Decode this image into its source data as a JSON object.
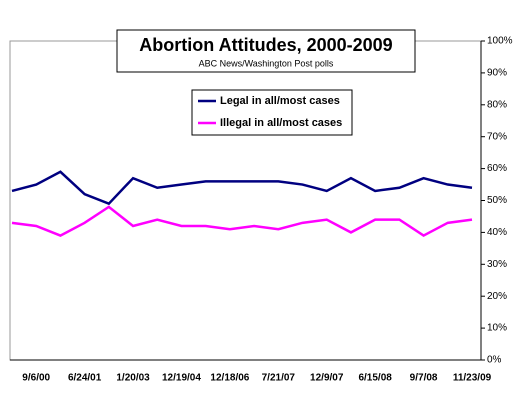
{
  "chart_data": {
    "type": "line",
    "title": "Abortion Attitudes, 2000-2009",
    "subtitle": "ABC News/Washington Post polls",
    "categories": [
      null,
      "9/6/00",
      null,
      "6/24/01",
      null,
      "1/20/03",
      null,
      "12/19/04",
      null,
      "12/18/06",
      null,
      "7/21/07",
      null,
      "12/9/07",
      null,
      "6/15/08",
      null,
      "9/7/08",
      null,
      "11/23/09"
    ],
    "series": [
      {
        "name": "Legal in all/most cases",
        "color": "#000080",
        "values": [
          53,
          55,
          59,
          52,
          49,
          57,
          54,
          55,
          56,
          56,
          56,
          56,
          55,
          53,
          57,
          53,
          54,
          57,
          55,
          54
        ]
      },
      {
        "name": "Illegal in all/most cases",
        "color": "#ff00ff",
        "values": [
          43,
          42,
          39,
          43,
          48,
          42,
          44,
          42,
          42,
          41,
          42,
          41,
          43,
          44,
          40,
          44,
          44,
          39,
          43,
          44
        ]
      }
    ],
    "ylim": [
      0,
      100
    ],
    "yticks": [
      {
        "value": 0,
        "label": "0%"
      },
      {
        "value": 10,
        "label": "10%"
      },
      {
        "value": 20,
        "label": "20%"
      },
      {
        "value": 30,
        "label": "30%"
      },
      {
        "value": 40,
        "label": "40%"
      },
      {
        "value": 50,
        "label": "50%"
      },
      {
        "value": 60,
        "label": "60%"
      },
      {
        "value": 70,
        "label": "70%"
      },
      {
        "value": 80,
        "label": "80%"
      },
      {
        "value": 90,
        "label": "90%"
      },
      {
        "value": 100,
        "label": "100%"
      }
    ],
    "grid": false
  }
}
